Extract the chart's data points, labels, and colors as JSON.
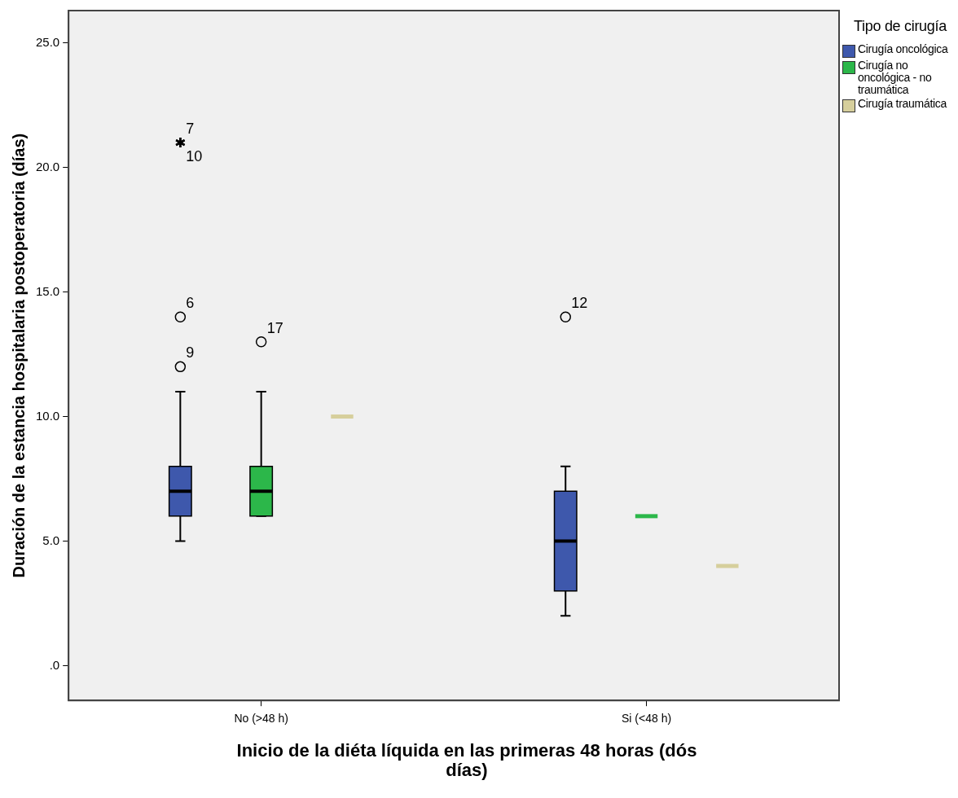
{
  "chart_data": {
    "type": "box",
    "xlabel": "Inicio de la diéta líquida en las primeras 48 horas (dós días)",
    "ylabel": "Duración de la estancia hospitalaria postoperatoria (días)",
    "legend_title": "Tipo de cirugía",
    "legend": "top right",
    "categories": [
      "No (>48 h)",
      "Si (<48 h)"
    ],
    "series": [
      {
        "name": "Cirugía oncológica",
        "color": "#3e58ac",
        "boxes": [
          {
            "low": 5,
            "q1": 6,
            "median": 7,
            "q3": 8,
            "high": 11,
            "outliers": [
              12,
              14,
              21,
              21
            ]
          },
          {
            "low": 2,
            "q1": 3,
            "median": 5,
            "q3": 7,
            "high": 8,
            "outliers": [
              14
            ]
          }
        ]
      },
      {
        "name": "Cirugía no oncológica - no traumática",
        "color": "#2cb74a",
        "boxes": [
          {
            "low": 6,
            "q1": 6,
            "median": 7,
            "q3": 8,
            "high": 11,
            "outliers": [
              13
            ]
          },
          {
            "low": 6,
            "q1": 6,
            "median": 6,
            "q3": 6,
            "high": 6
          }
        ]
      },
      {
        "name": "Cirugía traumática",
        "color": "#d6cf9c",
        "boxes": [
          {
            "low": 10,
            "q1": 10,
            "median": 10,
            "q3": 10,
            "high": 10
          },
          {
            "low": 4,
            "q1": 4,
            "median": 4,
            "q3": 4,
            "high": 4
          }
        ]
      }
    ],
    "ylim": [
      -1.4,
      26.3
    ],
    "yticks": [
      {
        "value": 0,
        "label": ".0"
      },
      {
        "value": 5,
        "label": "5.0"
      },
      {
        "value": 10,
        "label": "10.0"
      },
      {
        "value": 15,
        "label": "15.0"
      },
      {
        "value": 20,
        "label": "20.0"
      },
      {
        "value": 25,
        "label": "25.0"
      }
    ],
    "grid": false,
    "annotations": [
      "9",
      "6",
      "7",
      "10",
      "12",
      "17"
    ]
  }
}
